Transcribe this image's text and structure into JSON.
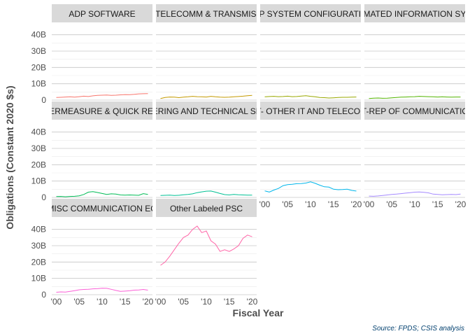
{
  "chart_data": {
    "type": "line",
    "xlabel": "Fiscal Year",
    "ylabel": "Obligations (Constant 2020 $s)",
    "caption": "Source: FPDS; CSIS analysis",
    "ylim": [
      0,
      45
    ],
    "xlim": [
      2000,
      2020
    ],
    "y_ticks": [
      0,
      10,
      20,
      30,
      40
    ],
    "y_tick_labels": [
      "0",
      "10B",
      "20B",
      "30B",
      "40B"
    ],
    "x_ticks": [
      2000,
      2005,
      2010,
      2015,
      2020
    ],
    "x_tick_labels": [
      "'00",
      "'05",
      "'10",
      "'15",
      "'20"
    ],
    "grid": true,
    "legend": "none",
    "x": [
      2000,
      2001,
      2002,
      2003,
      2004,
      2005,
      2006,
      2007,
      2008,
      2009,
      2010,
      2011,
      2012,
      2013,
      2014,
      2015,
      2016,
      2017,
      2018,
      2019,
      2020
    ],
    "series": [
      {
        "name": "ADP SOFTWARE",
        "color": "#f8766d",
        "values": [
          1.6,
          1.7,
          1.9,
          2.0,
          1.8,
          2.1,
          2.4,
          2.2,
          2.6,
          2.9,
          3.0,
          3.1,
          2.9,
          3.0,
          3.2,
          3.4,
          3.3,
          3.5,
          3.8,
          3.9,
          4.0
        ]
      },
      {
        "name": "ADP/TELECOMM & TRANSMISSION",
        "color": "#c49a00",
        "values": [
          1.0,
          1.6,
          1.9,
          1.8,
          1.5,
          1.8,
          2.0,
          2.3,
          2.1,
          2.0,
          1.9,
          2.3,
          2.0,
          1.8,
          1.7,
          1.8,
          2.0,
          2.2,
          2.4,
          2.7,
          2.9
        ]
      },
      {
        "name": "ADP SYSTEM CONFIGURATION",
        "color": "#99a800",
        "values": [
          2.0,
          2.2,
          2.3,
          2.1,
          2.2,
          2.4,
          2.1,
          2.2,
          2.5,
          2.7,
          2.3,
          2.0,
          1.6,
          1.5,
          1.3,
          1.4,
          1.6,
          1.7,
          1.7,
          1.8,
          1.9
        ]
      },
      {
        "name": "AUTOMATED INFORMATION SYSTEM",
        "color": "#53b400",
        "values": [
          1.0,
          1.2,
          1.3,
          1.1,
          1.2,
          1.4,
          1.6,
          1.8,
          1.9,
          2.0,
          2.1,
          2.3,
          2.2,
          2.1,
          2.0,
          1.9,
          2.0,
          1.9,
          1.8,
          1.9,
          1.9
        ]
      },
      {
        "name": "COUNTERMEASURE & QUICK REACTION",
        "color": "#00bc56",
        "values": [
          0.5,
          0.6,
          0.4,
          0.6,
          0.7,
          1.0,
          1.8,
          3.2,
          3.5,
          3.0,
          2.4,
          1.8,
          2.2,
          2.0,
          1.5,
          1.4,
          1.5,
          1.4,
          1.3,
          2.3,
          1.8
        ]
      },
      {
        "name": "ENGINEERING AND TECHNICAL SERVICES",
        "color": "#00c094",
        "values": [
          1.2,
          1.3,
          1.4,
          1.2,
          1.3,
          1.6,
          1.8,
          2.2,
          2.9,
          3.4,
          3.8,
          3.9,
          3.2,
          2.4,
          1.7,
          1.5,
          1.8,
          1.6,
          1.5,
          1.4,
          1.4
        ]
      },
      {
        "name": "IT- OTHER IT AND TELECOM",
        "color": "#00b6eb",
        "values": [
          4.0,
          3.3,
          4.5,
          5.5,
          7.2,
          7.8,
          8.0,
          8.4,
          8.5,
          8.8,
          9.5,
          8.6,
          7.5,
          6.5,
          6.3,
          5.0,
          4.7,
          4.8,
          5.0,
          4.3,
          3.9
        ]
      },
      {
        "name": "MAINT-REP OF COMMUNICATION EQ",
        "color": "#a58aff",
        "values": [
          0.8,
          0.7,
          0.9,
          1.2,
          1.5,
          1.8,
          2.0,
          2.3,
          2.6,
          2.9,
          3.2,
          3.3,
          3.1,
          2.8,
          2.0,
          1.8,
          1.6,
          1.7,
          1.8,
          1.7,
          2.0
        ]
      },
      {
        "name": "MISC COMMUNICATION EQ",
        "color": "#fb61d7",
        "values": [
          1.5,
          1.7,
          1.6,
          2.0,
          2.5,
          3.0,
          3.2,
          3.3,
          3.6,
          3.7,
          4.0,
          3.9,
          3.3,
          2.6,
          2.0,
          2.2,
          2.4,
          2.8,
          2.9,
          3.2,
          2.8
        ]
      },
      {
        "name": "Other Labeled PSC",
        "color": "#ff66a8",
        "values": [
          18.0,
          20.0,
          23.5,
          27.5,
          31.5,
          35.0,
          36.5,
          40.0,
          42.0,
          38.0,
          39.0,
          33.0,
          31.0,
          26.5,
          27.5,
          26.5,
          28.0,
          30.0,
          34.5,
          36.5,
          35.5
        ]
      }
    ]
  }
}
